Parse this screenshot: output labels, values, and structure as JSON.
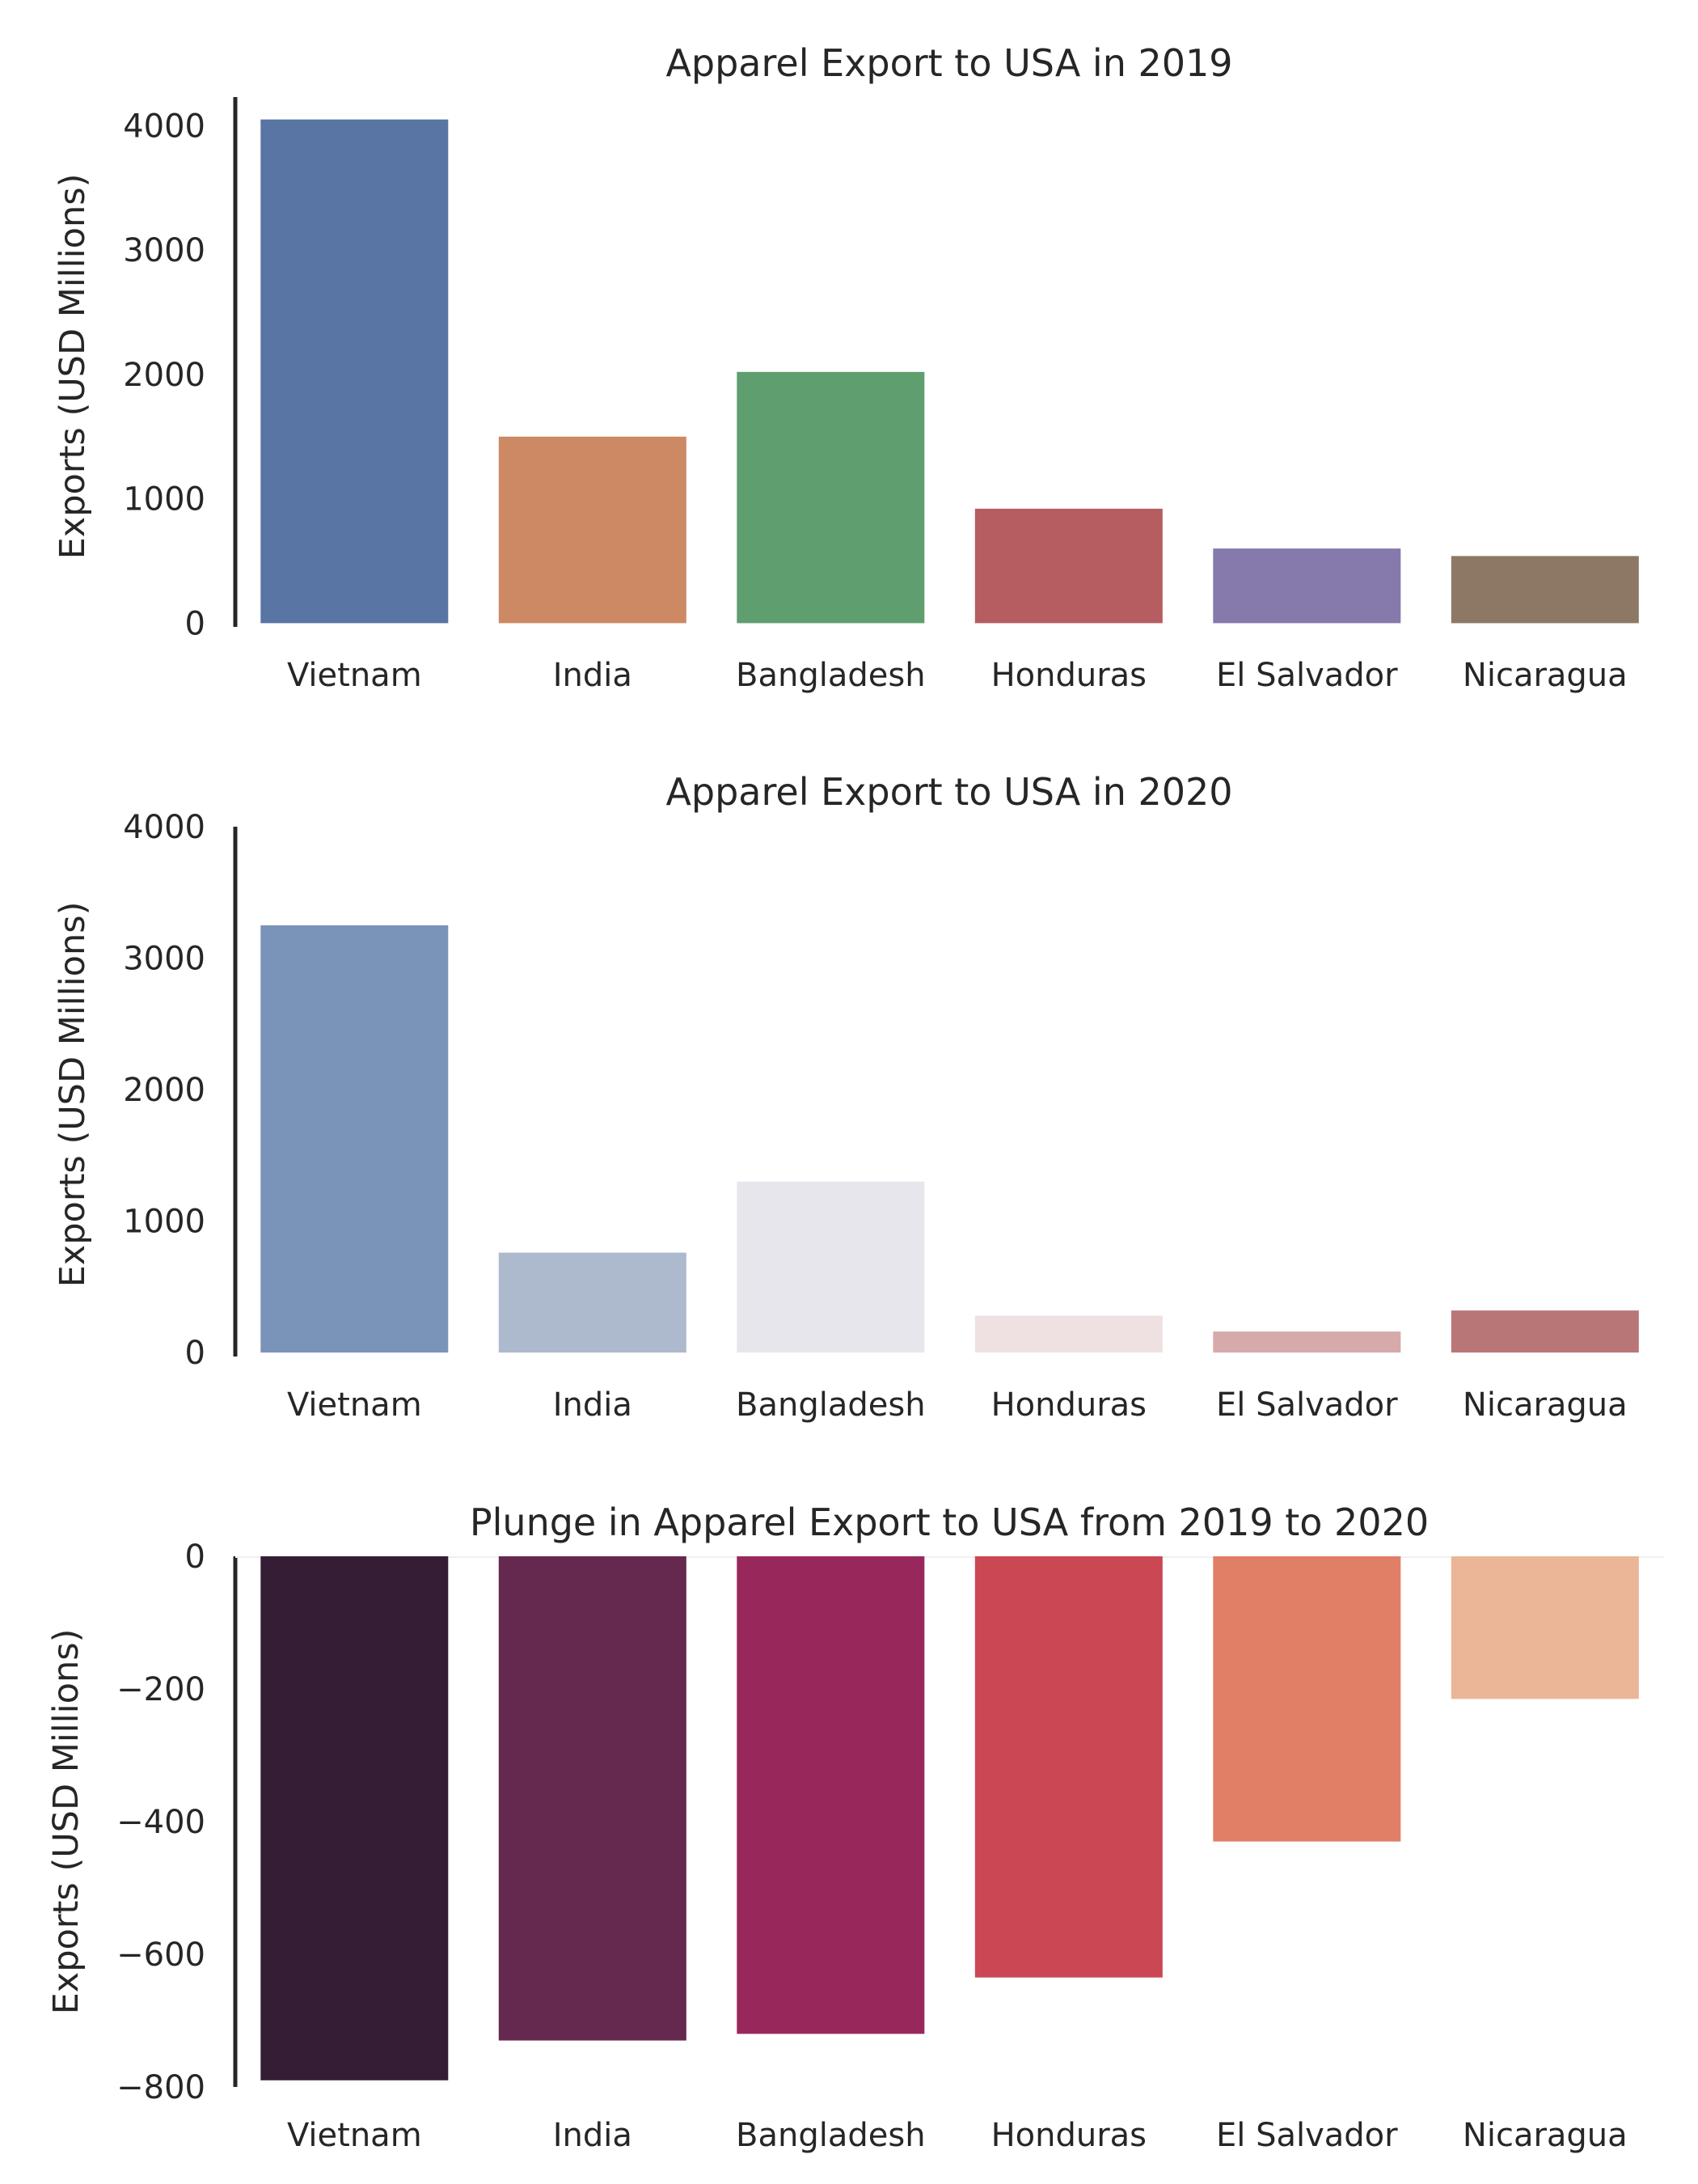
{
  "chart_data": [
    {
      "type": "bar",
      "title": "Apparel Export to USA in 2019",
      "xlabel": "",
      "ylabel": "Exports (USD Millions)",
      "categories": [
        "Vietnam",
        "India",
        "Bangladesh",
        "Honduras",
        "El Salvador",
        "Nicaragua"
      ],
      "values": [
        4050,
        1500,
        2020,
        920,
        600,
        540
      ],
      "colors": [
        "#5875A4",
        "#CC8963",
        "#5F9E6E",
        "#B55D60",
        "#857AAB",
        "#8D7866"
      ],
      "ylim": [
        -30,
        4230
      ],
      "yticks": [
        "0",
        "1000",
        "2000",
        "3000",
        "4000"
      ],
      "ytick_values": [
        0,
        1000,
        2000,
        3000,
        4000
      ],
      "grid": false
    },
    {
      "type": "bar",
      "title": "Apparel Export to USA in 2020",
      "xlabel": "",
      "ylabel": "Exports (USD Millions)",
      "categories": [
        "Vietnam",
        "India",
        "Bangladesh",
        "Honduras",
        "El Salvador",
        "Nicaragua"
      ],
      "values": [
        3250,
        760,
        1300,
        280,
        160,
        320
      ],
      "colors": [
        "#7A93B8",
        "#ADB9CC",
        "#E6E6EC",
        "#EFE0E1",
        "#D6AAAA",
        "#B97677"
      ],
      "ylim": [
        -30,
        4000
      ],
      "yticks": [
        "0",
        "1000",
        "2000",
        "3000",
        "4000"
      ],
      "ytick_values": [
        0,
        1000,
        2000,
        3000,
        4000
      ],
      "grid": false
    },
    {
      "type": "bar",
      "title": "Plunge in Apparel Export to USA from 2019 to 2020",
      "xlabel": "",
      "ylabel": "Exports (USD Millions)",
      "categories": [
        "Vietnam",
        "India",
        "Bangladesh",
        "Honduras",
        "El Salvador",
        "Nicaragua"
      ],
      "values": [
        -790,
        -730,
        -720,
        -635,
        -430,
        -215
      ],
      "colors": [
        "#351D36",
        "#65284E",
        "#98285B",
        "#CB4754",
        "#E07F66",
        "#EAB697"
      ],
      "ylim": [
        -800,
        0
      ],
      "yticks": [
        "0",
        "−200",
        "−400",
        "−600",
        "−800"
      ],
      "ytick_values": [
        0,
        -200,
        -400,
        -600,
        -800
      ],
      "grid": false
    }
  ]
}
